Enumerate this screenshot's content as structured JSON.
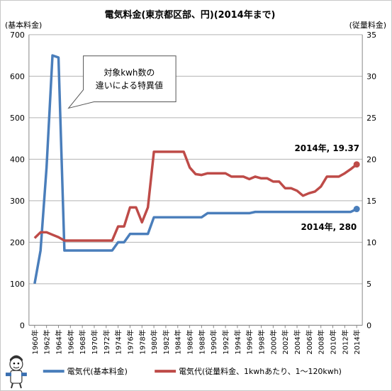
{
  "chart_data": {
    "type": "line",
    "title": "電気料金(東京都区部、円)(2014年まで)",
    "left_axis_unit": "(基本料金)",
    "right_axis_unit": "(従量料金)",
    "ylim_left": [
      0,
      700
    ],
    "yticks_left": [
      0,
      100,
      200,
      300,
      400,
      500,
      600,
      700
    ],
    "ylim_right": [
      0,
      35
    ],
    "yticks_right": [
      0,
      5,
      10,
      15,
      20,
      25,
      30,
      35
    ],
    "xlim": [
      1960,
      2014
    ],
    "x_tick_labels": [
      "1960年",
      "1962年",
      "1964年",
      "1966年",
      "1968年",
      "1970年",
      "1972年",
      "1974年",
      "1976年",
      "1978年",
      "1980年",
      "1982年",
      "1984年",
      "1986年",
      "1988年",
      "1990年",
      "1992年",
      "1994年",
      "1996年",
      "1998年",
      "2000年",
      "2002年",
      "2004年",
      "2006年",
      "2008年",
      "2010年",
      "2012年",
      "2014年"
    ],
    "grid": "horizontal",
    "legend_placement": "bottom",
    "series": [
      {
        "name": "電気代(基本料金)",
        "axis": "left",
        "color": "#4a7ebb",
        "points": [
          [
            1960,
            100
          ],
          [
            1961,
            180
          ],
          [
            1962,
            380
          ],
          [
            1963,
            650
          ],
          [
            1964,
            645
          ],
          [
            1965,
            180
          ],
          [
            1966,
            180
          ],
          [
            1967,
            180
          ],
          [
            1968,
            180
          ],
          [
            1969,
            180
          ],
          [
            1970,
            180
          ],
          [
            1971,
            180
          ],
          [
            1972,
            180
          ],
          [
            1973,
            180
          ],
          [
            1974,
            200
          ],
          [
            1975,
            200
          ],
          [
            1976,
            220
          ],
          [
            1977,
            220
          ],
          [
            1978,
            220
          ],
          [
            1979,
            220
          ],
          [
            1980,
            260
          ],
          [
            1981,
            260
          ],
          [
            1982,
            260
          ],
          [
            1983,
            260
          ],
          [
            1984,
            260
          ],
          [
            1985,
            260
          ],
          [
            1986,
            260
          ],
          [
            1987,
            260
          ],
          [
            1988,
            260
          ],
          [
            1989,
            270
          ],
          [
            1990,
            270
          ],
          [
            1991,
            270
          ],
          [
            1992,
            270
          ],
          [
            1993,
            270
          ],
          [
            1994,
            270
          ],
          [
            1995,
            270
          ],
          [
            1996,
            270
          ],
          [
            1997,
            273
          ],
          [
            1998,
            273
          ],
          [
            1999,
            273
          ],
          [
            2000,
            273
          ],
          [
            2001,
            273
          ],
          [
            2002,
            273
          ],
          [
            2003,
            273
          ],
          [
            2004,
            273
          ],
          [
            2005,
            273
          ],
          [
            2006,
            273
          ],
          [
            2007,
            273
          ],
          [
            2008,
            273
          ],
          [
            2009,
            273
          ],
          [
            2010,
            273
          ],
          [
            2011,
            273
          ],
          [
            2012,
            273
          ],
          [
            2013,
            273
          ],
          [
            2014,
            280
          ]
        ]
      },
      {
        "name": "電気代(従量料金、1kwhあたり、1〜120kwh)",
        "axis": "right",
        "color": "#be4b48",
        "points": [
          [
            1960,
            10.5
          ],
          [
            1961,
            11.2
          ],
          [
            1962,
            11.2
          ],
          [
            1963,
            10.9
          ],
          [
            1964,
            10.6
          ],
          [
            1965,
            10.2
          ],
          [
            1966,
            10.2
          ],
          [
            1967,
            10.2
          ],
          [
            1968,
            10.2
          ],
          [
            1969,
            10.2
          ],
          [
            1970,
            10.2
          ],
          [
            1971,
            10.2
          ],
          [
            1972,
            10.2
          ],
          [
            1973,
            10.2
          ],
          [
            1974,
            11.9
          ],
          [
            1975,
            11.9
          ],
          [
            1976,
            14.2
          ],
          [
            1977,
            14.2
          ],
          [
            1978,
            12.4
          ],
          [
            1979,
            14.2
          ],
          [
            1980,
            20.9
          ],
          [
            1981,
            20.9
          ],
          [
            1982,
            20.9
          ],
          [
            1983,
            20.9
          ],
          [
            1984,
            20.9
          ],
          [
            1985,
            20.9
          ],
          [
            1986,
            19.0
          ],
          [
            1987,
            18.2
          ],
          [
            1988,
            18.1
          ],
          [
            1989,
            18.3
          ],
          [
            1990,
            18.3
          ],
          [
            1991,
            18.3
          ],
          [
            1992,
            18.3
          ],
          [
            1993,
            17.9
          ],
          [
            1994,
            17.9
          ],
          [
            1995,
            17.9
          ],
          [
            1996,
            17.6
          ],
          [
            1997,
            17.9
          ],
          [
            1998,
            17.7
          ],
          [
            1999,
            17.7
          ],
          [
            2000,
            17.3
          ],
          [
            2001,
            17.3
          ],
          [
            2002,
            16.5
          ],
          [
            2003,
            16.5
          ],
          [
            2004,
            16.2
          ],
          [
            2005,
            15.6
          ],
          [
            2006,
            15.9
          ],
          [
            2007,
            16.1
          ],
          [
            2008,
            16.7
          ],
          [
            2009,
            17.9
          ],
          [
            2010,
            17.9
          ],
          [
            2011,
            17.9
          ],
          [
            2012,
            18.3
          ],
          [
            2013,
            18.8
          ],
          [
            2014,
            19.37
          ]
        ]
      }
    ],
    "annotations": {
      "callout_line1": "対象kwh数の",
      "callout_line2": "違いによる特異値",
      "label_red_end": "2014年, 19.37",
      "label_blue_end": "2014年, 280"
    }
  }
}
